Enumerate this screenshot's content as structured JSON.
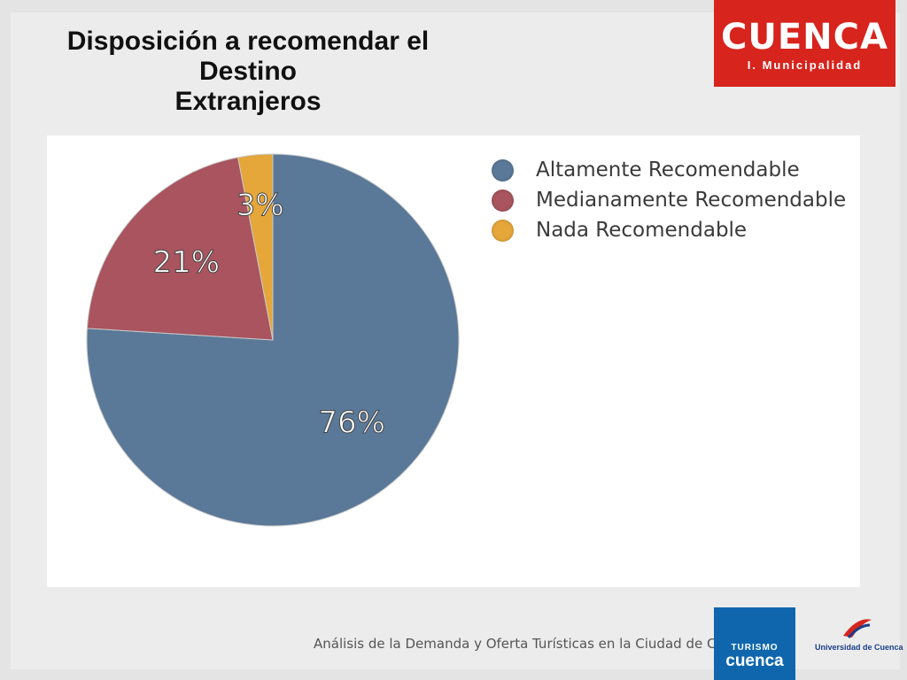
{
  "title": {
    "line1": "Disposición a recomendar el",
    "line2": "Destino",
    "line3": "Extranjeros"
  },
  "logos": {
    "top_right_word": "CUENCA",
    "top_right_sub": "I. Municipalidad",
    "turismo_line1": "TURISMO",
    "turismo_line2": "cuenca",
    "university": "Universidad de Cuenca"
  },
  "footer": {
    "text": "Análisis de la Demanda y Oferta Turísticas en la Ciudad de Cuenca"
  },
  "colors": {
    "alto": "#5a7898",
    "medio": "#a9545e",
    "nada": "#e5a63a",
    "logo_red": "#d7241d",
    "logo_blue": "#0f66ad"
  },
  "chart_data": {
    "type": "pie",
    "title": "",
    "legend_position": "right",
    "series": [
      {
        "name": "Altamente Recomendable",
        "value": 76,
        "label": "76%",
        "color": "#5a7898"
      },
      {
        "name": "Medianamente Recomendable",
        "value": 21,
        "label": "21%",
        "color": "#a9545e"
      },
      {
        "name": "Nada Recomendable",
        "value": 3,
        "label": "3%",
        "color": "#e5a63a"
      }
    ]
  }
}
